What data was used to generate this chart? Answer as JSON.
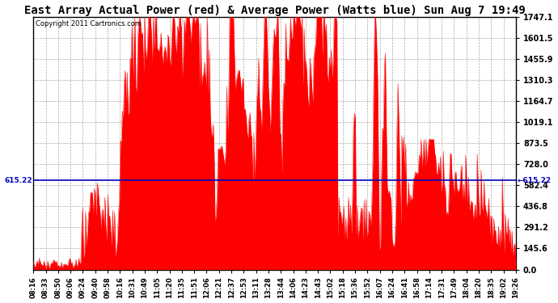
{
  "title": "East Array Actual Power (red) & Average Power (Watts blue) Sun Aug 7 19:49",
  "copyright": "Copyright 2011 Cartronics.com",
  "avg_value": 615.22,
  "ymax": 1747.1,
  "ymin": 0.0,
  "yticks": [
    0.0,
    145.6,
    291.2,
    436.8,
    582.4,
    728.0,
    873.5,
    1019.1,
    1164.7,
    1310.3,
    1455.9,
    1601.5,
    1747.1
  ],
  "fill_color": "#FF0000",
  "avg_line_color": "#0000BB",
  "background_color": "#FFFFFF",
  "grid_color": "#AAAAAA",
  "title_fontsize": 10,
  "xtick_labels": [
    "08:16",
    "08:33",
    "08:50",
    "09:06",
    "09:24",
    "09:40",
    "09:58",
    "10:16",
    "10:31",
    "10:49",
    "11:05",
    "11:20",
    "11:35",
    "11:51",
    "12:06",
    "12:21",
    "12:37",
    "12:53",
    "13:11",
    "13:28",
    "13:44",
    "14:06",
    "14:23",
    "14:43",
    "15:02",
    "15:18",
    "15:36",
    "15:52",
    "16:07",
    "16:24",
    "16:41",
    "16:58",
    "17:14",
    "17:31",
    "17:49",
    "18:04",
    "18:20",
    "18:35",
    "19:02",
    "19:26"
  ],
  "num_points": 500
}
